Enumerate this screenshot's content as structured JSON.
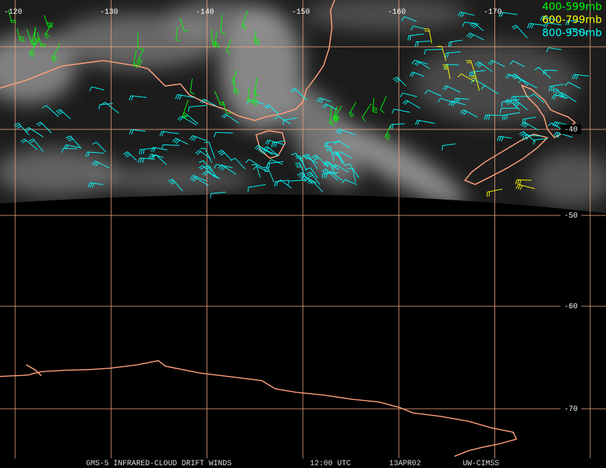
{
  "map": {
    "longitude_labels": [
      -120,
      -130,
      -140,
      -150,
      -160,
      -170
    ],
    "latitude_labels": [
      -40,
      -50,
      -60,
      -70
    ],
    "legend": [
      {
        "label": "400-599mb",
        "color": "#00ff00"
      },
      {
        "label": "600-799mb",
        "color": "#ffff00"
      },
      {
        "label": "800-950mb",
        "color": "#00ffff"
      }
    ],
    "footer": [
      "GMS-5 INFRARED-CLOUD DRIFT WINDS",
      "12:00 UTC",
      "13APR02",
      "UW-CIMSS"
    ]
  }
}
